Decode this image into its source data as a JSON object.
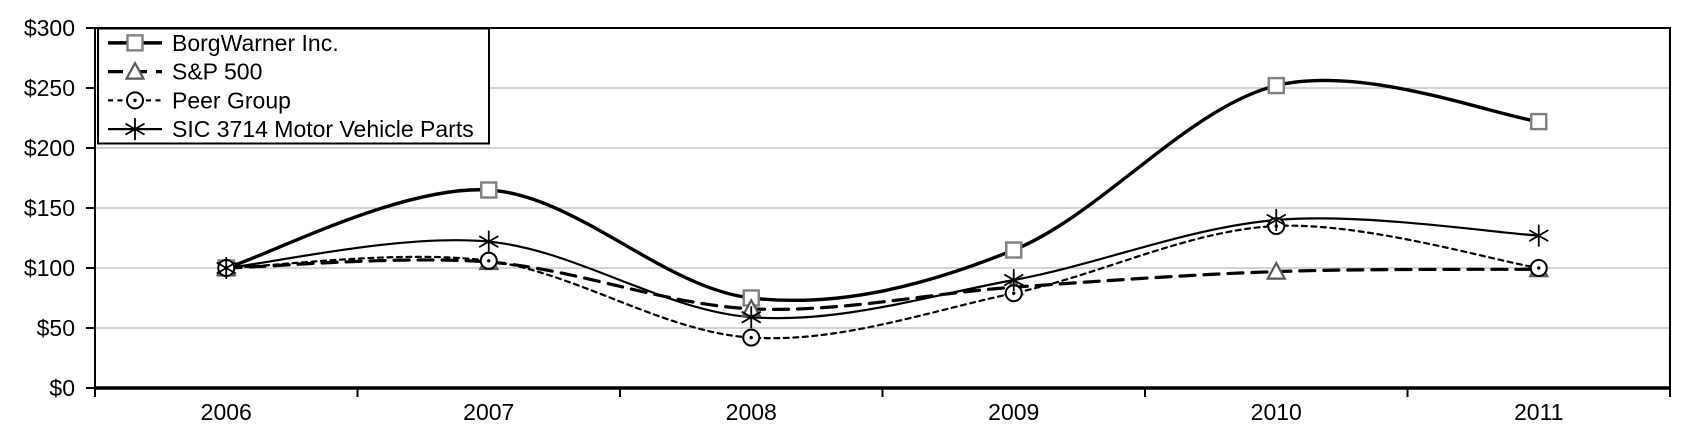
{
  "chart_data": {
    "type": "line",
    "title": "",
    "categories": [
      "2006",
      "2007",
      "2008",
      "2009",
      "2010",
      "2011"
    ],
    "series": [
      {
        "name": "BorgWarner Inc.",
        "values": [
          100,
          165,
          75,
          115,
          252,
          222
        ],
        "marker": "square",
        "line": "solid",
        "stroke_width": 3.4
      },
      {
        "name": "S&P 500",
        "values": [
          100,
          105,
          66,
          84,
          97,
          99
        ],
        "marker": "triangle",
        "line": "long-dash",
        "stroke_width": 3.2
      },
      {
        "name": "Peer Group",
        "values": [
          100,
          106,
          42,
          79,
          135,
          100
        ],
        "marker": "circle-dot",
        "line": "short-dash",
        "stroke_width": 2.2
      },
      {
        "name": "SIC 3714 Motor Vehicle Parts",
        "values": [
          100,
          122,
          59,
          90,
          140,
          127
        ],
        "marker": "asterisk",
        "line": "solid",
        "stroke_width": 2.2
      }
    ],
    "ylim": [
      0,
      300
    ],
    "ytick_step": 50,
    "ytick_labels": [
      "$0",
      "$50",
      "$100",
      "$150",
      "$200",
      "$250",
      "$300"
    ],
    "xlabel": "",
    "ylabel": "",
    "grid": true,
    "smooth_lines": true,
    "legend_position": "top-left",
    "colors": {
      "line": "#000000",
      "square_marker": "#7f7f7f",
      "triangle_marker": "#595959",
      "grid": "#aaaaaa",
      "frame": "#000000",
      "background": "#ffffff"
    }
  }
}
